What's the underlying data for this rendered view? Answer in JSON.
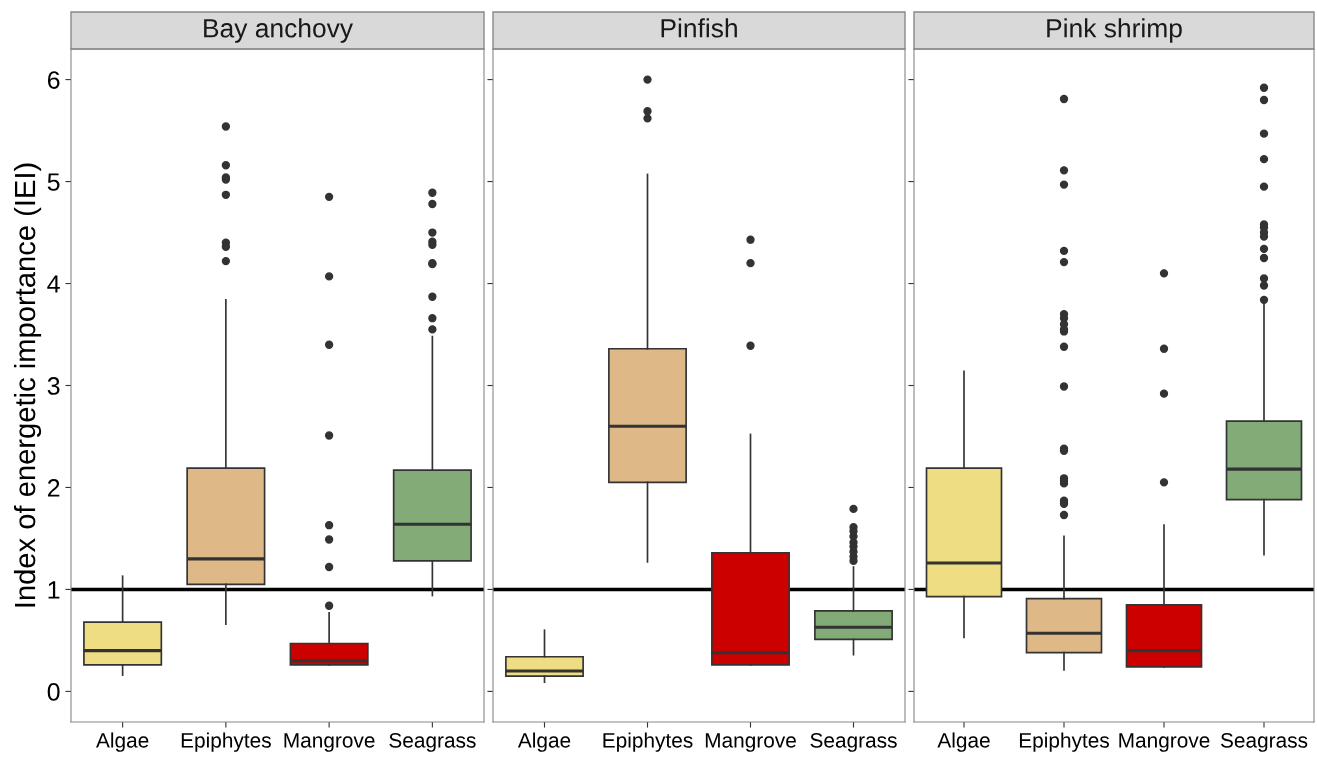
{
  "chart_data": [
    {
      "type": "box",
      "title": "Bay anchovy",
      "ylabel": "Index of energetic importance (IEI)",
      "categories": [
        "Algae",
        "Epiphytes",
        "Mangrove",
        "Seagrass"
      ],
      "colors": [
        "#eedd82",
        "#deb887",
        "#cd0000",
        "#83ab78"
      ],
      "boxes": [
        {
          "low": 0.16,
          "q1": 0.26,
          "median": 0.4,
          "q3": 0.68,
          "high": 1.13
        },
        {
          "low": 0.66,
          "q1": 1.05,
          "median": 1.3,
          "q3": 2.19,
          "high": 3.84,
          "outliers": [
            5.54,
            5.16,
            5.04,
            5.02,
            4.87,
            4.4,
            4.36,
            4.22
          ]
        },
        {
          "low": 0.26,
          "q1": 0.26,
          "median": 0.3,
          "q3": 0.47,
          "high": 0.77,
          "outliers": [
            4.85,
            4.07,
            3.4,
            2.51,
            1.63,
            1.49,
            1.22,
            0.84
          ]
        },
        {
          "low": 0.94,
          "q1": 1.28,
          "median": 1.64,
          "q3": 2.17,
          "high": 3.48,
          "outliers": [
            4.89,
            4.78,
            4.5,
            4.41,
            4.38,
            4.2,
            4.19,
            3.87,
            3.66,
            3.55
          ]
        }
      ],
      "ylim": [
        -0.3,
        6.3
      ],
      "yticks": [
        0,
        1,
        2,
        3,
        4,
        5,
        6
      ],
      "ref_lines": [
        {
          "axis": "y",
          "value": 1,
          "color": "#000000"
        }
      ],
      "grid": false
    },
    {
      "type": "box",
      "title": "Pinfish",
      "categories": [
        "Algae",
        "Epiphytes",
        "Mangrove",
        "Seagrass"
      ],
      "colors": [
        "#eedd82",
        "#deb887",
        "#cd0000",
        "#83ab78"
      ],
      "boxes": [
        {
          "low": 0.09,
          "q1": 0.15,
          "median": 0.2,
          "q3": 0.34,
          "high": 0.6
        },
        {
          "low": 1.27,
          "q1": 2.05,
          "median": 2.6,
          "q3": 3.36,
          "high": 5.07,
          "outliers": [
            6.0,
            5.69,
            5.62
          ]
        },
        {
          "low": 0.26,
          "q1": 0.26,
          "median": 0.38,
          "q3": 1.36,
          "high": 2.52,
          "outliers": [
            4.43,
            4.2,
            3.39
          ]
        },
        {
          "low": 0.36,
          "q1": 0.51,
          "median": 0.63,
          "q3": 0.79,
          "high": 1.22,
          "outliers": [
            1.79,
            1.61,
            1.57,
            1.52,
            1.46,
            1.42,
            1.37,
            1.32,
            1.28
          ]
        }
      ],
      "ylim": [
        -0.3,
        6.3
      ],
      "yticks": [
        0,
        1,
        2,
        3,
        4,
        5,
        6
      ],
      "tick_labels": "x",
      "ref_lines": [
        {
          "axis": "y",
          "value": 1,
          "color": "#000000"
        }
      ],
      "grid": false
    },
    {
      "type": "box",
      "title": "Pink shrimp",
      "categories": [
        "Algae",
        "Epiphytes",
        "Mangrove",
        "Seagrass"
      ],
      "colors": [
        "#eedd82",
        "#deb887",
        "#cd0000",
        "#83ab78"
      ],
      "boxes": [
        {
          "low": 0.53,
          "q1": 0.93,
          "median": 1.26,
          "q3": 2.19,
          "high": 3.14
        },
        {
          "low": 0.21,
          "q1": 0.38,
          "median": 0.57,
          "q3": 0.91,
          "high": 1.52,
          "outliers": [
            5.81,
            5.11,
            4.97,
            4.32,
            4.21,
            3.7,
            3.66,
            3.6,
            3.55,
            3.53,
            3.38,
            2.99,
            2.38,
            2.36,
            2.09,
            2.07,
            2.04,
            1.87,
            1.84,
            1.73
          ]
        },
        {
          "low": 0.24,
          "q1": 0.24,
          "median": 0.4,
          "q3": 0.85,
          "high": 1.63,
          "outliers": [
            4.1,
            3.36,
            2.92,
            2.05
          ]
        },
        {
          "low": 1.34,
          "q1": 1.88,
          "median": 2.18,
          "q3": 2.65,
          "high": 3.82,
          "outliers": [
            5.92,
            5.8,
            5.47,
            5.22,
            4.95,
            4.58,
            4.55,
            4.5,
            4.46,
            4.34,
            4.25,
            4.05,
            3.98,
            3.84
          ]
        }
      ],
      "ylim": [
        -0.3,
        6.3
      ],
      "yticks": [
        0,
        1,
        2,
        3,
        4,
        5,
        6
      ],
      "tick_labels": "x",
      "ref_lines": [
        {
          "axis": "y",
          "value": 1,
          "color": "#000000"
        }
      ],
      "grid": false
    }
  ]
}
